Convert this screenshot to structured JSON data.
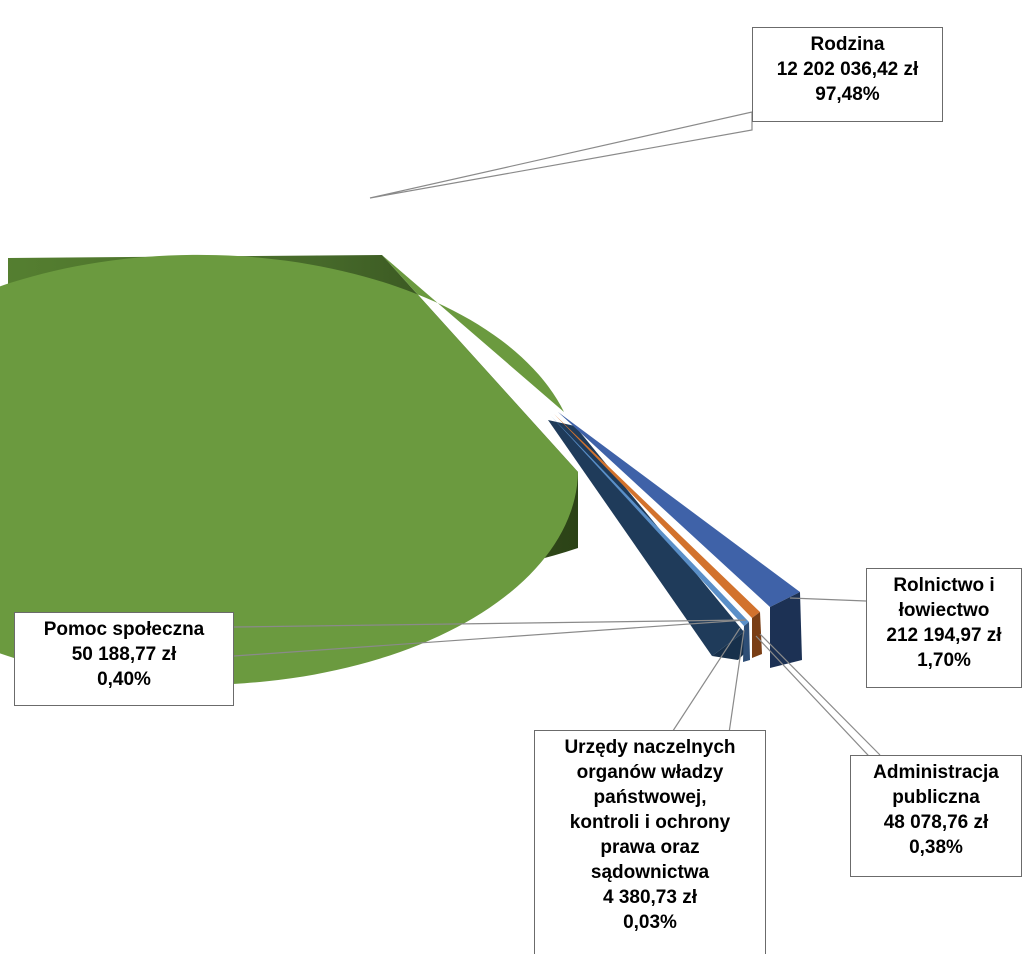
{
  "chart_data": {
    "type": "pie",
    "title": "",
    "slices": [
      {
        "name": "Rodzina",
        "value": 12202036.42,
        "value_label": "12 202 036,42 zł",
        "percent_label": "97,48%",
        "color": "#6b9a3f"
      },
      {
        "name": "Rolnictwo i łowiectwo",
        "value": 212194.97,
        "value_label": "212 194,97 zł",
        "percent_label": "1,70%",
        "color": "#3f62a8"
      },
      {
        "name": "Administracja publiczna",
        "value": 48078.76,
        "value_label": "48 078,76 zł",
        "percent_label": "0,38%",
        "color": "#c8682a"
      },
      {
        "name": "Urzędy naczelnych organów władzy państwowej, kontroli i ochrony prawa oraz sądownictwa",
        "value": 4380.73,
        "value_label": "4 380,73 zł",
        "percent_label": "0,03%",
        "color": "#8b4a22"
      },
      {
        "name": "Pomoc społeczna",
        "value": 50188.77,
        "value_label": "50 188,77 zł",
        "percent_label": "0,40%",
        "color": "#5a8fc8"
      }
    ],
    "labels": {
      "rodzina": [
        "Rodzina",
        "12 202 036,42 zł",
        "97,48%"
      ],
      "rolnictwo": [
        "Rolnictwo i",
        "łowiectwo",
        "212 194,97 zł",
        "1,70%"
      ],
      "administracja": [
        "Administracja",
        "publiczna",
        "48 078,76 zł",
        "0,38%"
      ],
      "urzedy": [
        "Urzędy naczelnych",
        "organów władzy",
        "państwowej,",
        "kontroli i ochrony",
        "prawa oraz",
        "sądownictwa",
        "4 380,73 zł",
        "0,03%"
      ],
      "pomoc": [
        "Pomoc społeczna",
        "50 188,77 zł",
        "0,40%"
      ]
    },
    "legend": "none",
    "style": "3d-exploded"
  }
}
